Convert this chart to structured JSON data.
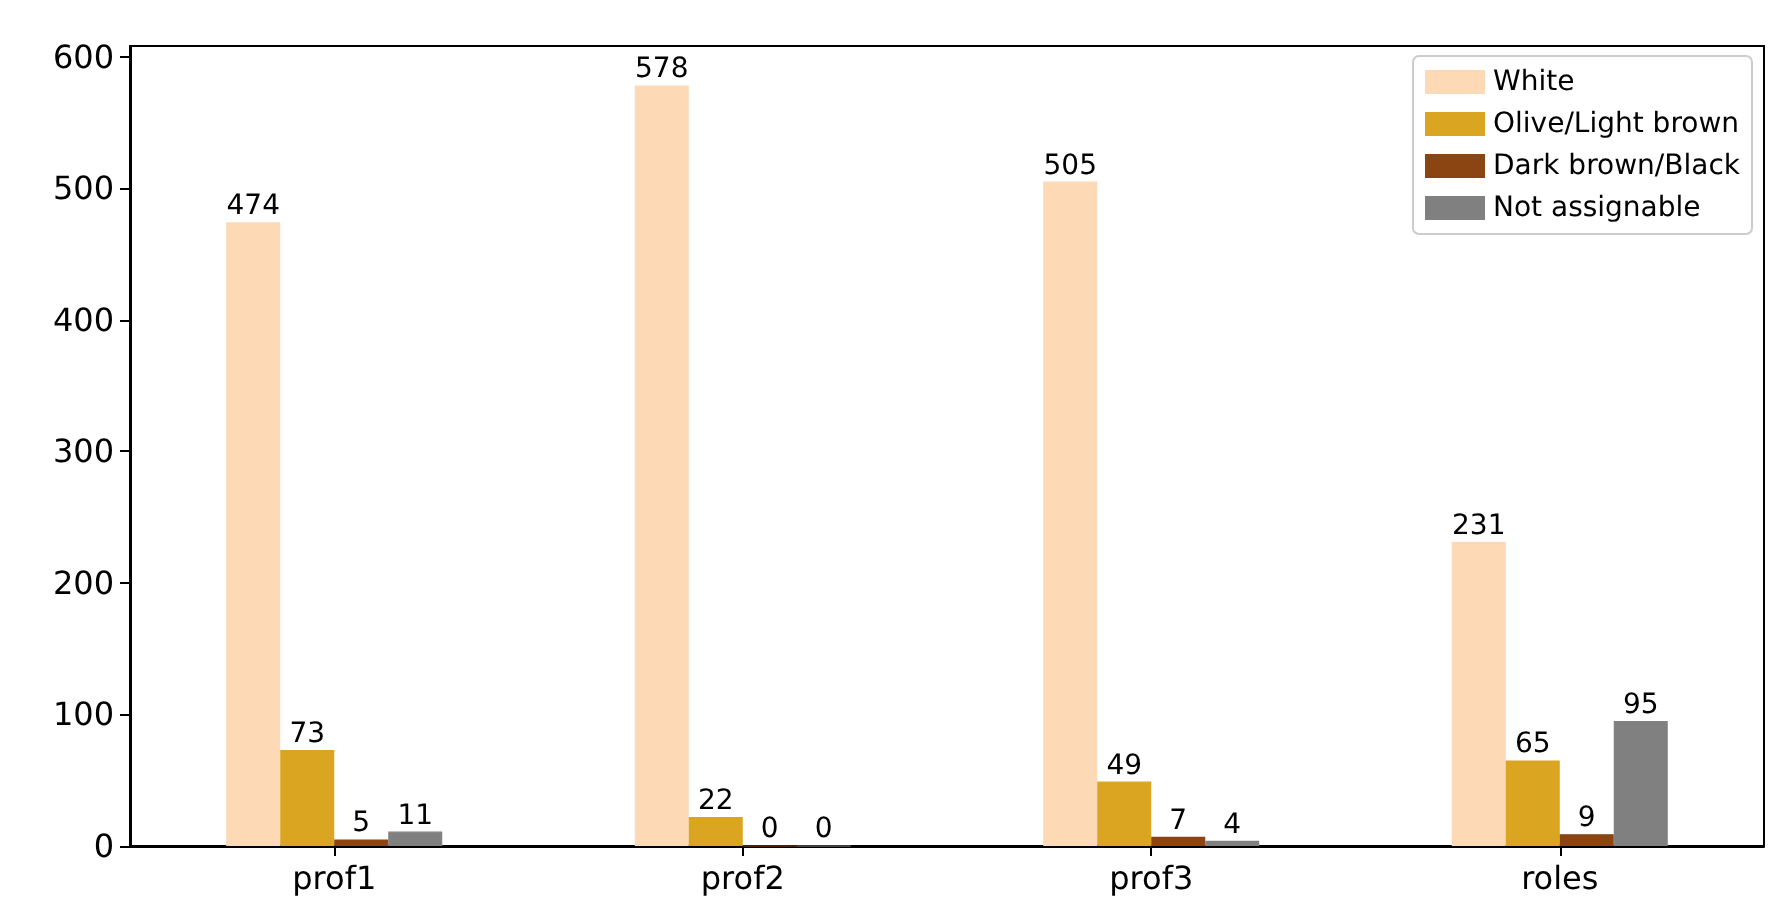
{
  "chart_data": {
    "type": "bar",
    "categories": [
      "prof1",
      "prof2",
      "prof3",
      "roles"
    ],
    "series": [
      {
        "name": "White",
        "color": "#fdd9b5",
        "values": [
          474,
          578,
          505,
          231
        ]
      },
      {
        "name": "Olive/Light brown",
        "color": "#daa520",
        "values": [
          73,
          22,
          49,
          65
        ]
      },
      {
        "name": "Dark brown/Black",
        "color": "#8b4513",
        "values": [
          5,
          0,
          7,
          9
        ]
      },
      {
        "name": "Not assignable",
        "color": "#808080",
        "values": [
          11,
          0,
          4,
          95
        ]
      }
    ],
    "ylim": [
      0,
      608
    ],
    "yticks": [
      0,
      100,
      200,
      300,
      400,
      500,
      600
    ],
    "grid": false,
    "legend": "top right",
    "data_labels": true
  }
}
